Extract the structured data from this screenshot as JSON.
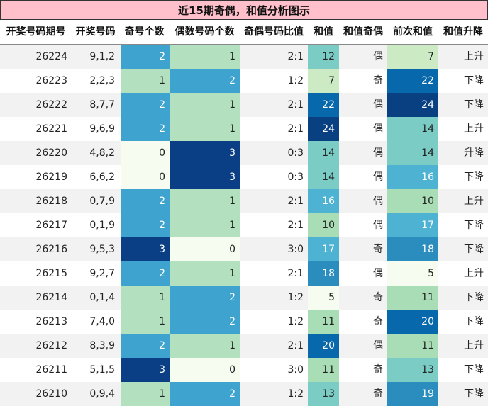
{
  "title": "近15期奇偶，和值分析图示",
  "columns": [
    "开奖号码期号",
    "开奖号码",
    "奇号个数",
    "偶数号码个数",
    "奇偶号码比值",
    "和值",
    "和值奇偶",
    "前次和值",
    "和值升降"
  ],
  "rows": [
    {
      "issue": "26224",
      "numbers": "9,1,2",
      "odd": 2,
      "even": 1,
      "ratio": "2:1",
      "sum": 12,
      "sum_parity": "偶",
      "prev_sum": 7,
      "trend": "上升"
    },
    {
      "issue": "26223",
      "numbers": "2,2,3",
      "odd": 1,
      "even": 2,
      "ratio": "1:2",
      "sum": 7,
      "sum_parity": "奇",
      "prev_sum": 22,
      "trend": "下降"
    },
    {
      "issue": "26222",
      "numbers": "8,7,7",
      "odd": 2,
      "even": 1,
      "ratio": "2:1",
      "sum": 22,
      "sum_parity": "偶",
      "prev_sum": 24,
      "trend": "下降"
    },
    {
      "issue": "26221",
      "numbers": "9,6,9",
      "odd": 2,
      "even": 1,
      "ratio": "2:1",
      "sum": 24,
      "sum_parity": "偶",
      "prev_sum": 14,
      "trend": "上升"
    },
    {
      "issue": "26220",
      "numbers": "4,8,2",
      "odd": 0,
      "even": 3,
      "ratio": "0:3",
      "sum": 14,
      "sum_parity": "偶",
      "prev_sum": 14,
      "trend": "升降"
    },
    {
      "issue": "26219",
      "numbers": "6,6,2",
      "odd": 0,
      "even": 3,
      "ratio": "0:3",
      "sum": 14,
      "sum_parity": "偶",
      "prev_sum": 16,
      "trend": "下降"
    },
    {
      "issue": "26218",
      "numbers": "0,7,9",
      "odd": 2,
      "even": 1,
      "ratio": "2:1",
      "sum": 16,
      "sum_parity": "偶",
      "prev_sum": 10,
      "trend": "上升"
    },
    {
      "issue": "26217",
      "numbers": "0,1,9",
      "odd": 2,
      "even": 1,
      "ratio": "2:1",
      "sum": 10,
      "sum_parity": "偶",
      "prev_sum": 17,
      "trend": "下降"
    },
    {
      "issue": "26216",
      "numbers": "9,5,3",
      "odd": 3,
      "even": 0,
      "ratio": "3:0",
      "sum": 17,
      "sum_parity": "奇",
      "prev_sum": 18,
      "trend": "下降"
    },
    {
      "issue": "26215",
      "numbers": "9,2,7",
      "odd": 2,
      "even": 1,
      "ratio": "2:1",
      "sum": 18,
      "sum_parity": "偶",
      "prev_sum": 5,
      "trend": "上升"
    },
    {
      "issue": "26214",
      "numbers": "0,1,4",
      "odd": 1,
      "even": 2,
      "ratio": "1:2",
      "sum": 5,
      "sum_parity": "奇",
      "prev_sum": 11,
      "trend": "下降"
    },
    {
      "issue": "26213",
      "numbers": "7,4,0",
      "odd": 1,
      "even": 2,
      "ratio": "1:2",
      "sum": 11,
      "sum_parity": "奇",
      "prev_sum": 20,
      "trend": "下降"
    },
    {
      "issue": "26212",
      "numbers": "8,3,9",
      "odd": 2,
      "even": 1,
      "ratio": "2:1",
      "sum": 20,
      "sum_parity": "偶",
      "prev_sum": 11,
      "trend": "上升"
    },
    {
      "issue": "26211",
      "numbers": "5,1,5",
      "odd": 3,
      "even": 0,
      "ratio": "3:0",
      "sum": 11,
      "sum_parity": "奇",
      "prev_sum": 13,
      "trend": "下降"
    },
    {
      "issue": "26210",
      "numbers": "0,9,4",
      "odd": 1,
      "even": 2,
      "ratio": "1:2",
      "sum": 13,
      "sum_parity": "奇",
      "prev_sum": 19,
      "trend": "下降"
    }
  ],
  "colors": {
    "title_bg": "#ffc0cb",
    "stripe": "#f2f2f2",
    "count_scale": [
      "#f7fcf0",
      "#b3e0be",
      "#3ea4cf",
      "#0a3f86"
    ],
    "sum_scale": [
      "#f7fcf0",
      "#ccebc5",
      "#a8ddb5",
      "#7bccc4",
      "#4eb3d3",
      "#2b8cbe",
      "#0868ac",
      "#084081"
    ]
  },
  "chart_data": {
    "type": "table",
    "title": "近15期奇偶，和值分析图示",
    "columns": [
      "开奖号码期号",
      "开奖号码",
      "奇号个数",
      "偶数号码个数",
      "奇偶号码比值",
      "和值",
      "和值奇偶",
      "前次和值",
      "和值升降"
    ],
    "heatmap_columns": [
      "奇号个数",
      "偶数号码个数",
      "和值",
      "前次和值"
    ],
    "count_range": [
      0,
      3
    ],
    "sum_range": [
      5,
      24
    ]
  }
}
